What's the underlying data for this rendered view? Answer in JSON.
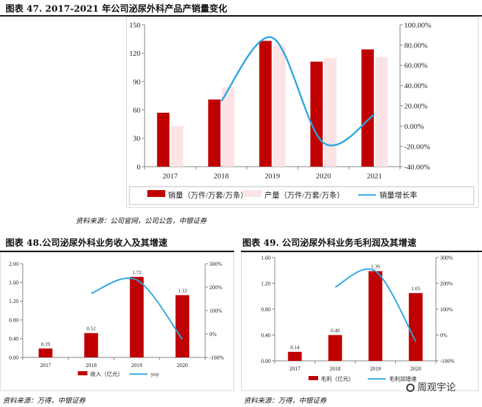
{
  "fig47": {
    "title": "图表 47. 2017-2021 年公司泌尿外科产品产销量变化",
    "source": "资料来源：公司官网，公司公告，中银证券"
  },
  "fig48": {
    "title": "图表 48.公司泌尿外科业务收入及其增速",
    "source": "资料来源：万得，中银证券"
  },
  "fig49": {
    "title": "图表 49. 公司泌尿外科业务毛利润及其增速",
    "source": "资料来源：万得，中银证券"
  },
  "watermark": "周观宇论",
  "colors": {
    "bar": "#c00000",
    "bar_light": "#fbe3e6",
    "line": "#2aa7e0",
    "axis": "#7f7f7f"
  },
  "chart_data": [
    {
      "type": "bar",
      "categories": [
        "2017",
        "2018",
        "2019",
        "2020",
        "2021"
      ],
      "series": [
        {
          "name": "销量（万件/万套/万条）",
          "kind": "bar",
          "axis": "left",
          "values": [
            57,
            71,
            133,
            111,
            124
          ]
        },
        {
          "name": "产量（万件/万套/万条）",
          "kind": "bar",
          "axis": "left",
          "values": [
            43,
            84,
            128,
            115,
            116
          ]
        },
        {
          "name": "销量增长率",
          "kind": "line",
          "axis": "right",
          "values": [
            null,
            24.6,
            87.3,
            -16.5,
            11.7
          ]
        }
      ],
      "yticks_left": [
        "0",
        "30",
        "60",
        "90",
        "120",
        "150"
      ],
      "yticks_right": [
        "-40.00%",
        "-20.00%",
        "0.00%",
        "20.00%",
        "40.00%",
        "60.00%",
        "80.00%",
        "100.00%"
      ],
      "ylim_left": [
        0,
        150
      ],
      "ylim_right": [
        -40,
        100
      ],
      "legend_position": "bottom",
      "grid": false
    },
    {
      "type": "bar",
      "categories": [
        "2017",
        "2018",
        "2019",
        "2020"
      ],
      "series": [
        {
          "name": "收入（亿元）",
          "kind": "bar",
          "axis": "left",
          "values": [
            0.19,
            0.52,
            1.72,
            1.33
          ],
          "labels": [
            "0.19",
            "0.52",
            "1.72",
            "1.33"
          ]
        },
        {
          "name": "yoy",
          "kind": "line",
          "axis": "right",
          "values": [
            null,
            173.7,
            230.8,
            -22.7
          ]
        }
      ],
      "yticks_left": [
        "0.00",
        "0.40",
        "0.80",
        "1.20",
        "1.60",
        "2.00"
      ],
      "yticks_right": [
        "-100%",
        "0%",
        "100%",
        "200%",
        "300%"
      ],
      "ylim_left": [
        0,
        2
      ],
      "ylim_right": [
        -100,
        300
      ],
      "legend_position": "bottom",
      "grid": false
    },
    {
      "type": "bar",
      "categories": [
        "2017",
        "2018",
        "2019",
        "2020"
      ],
      "series": [
        {
          "name": "毛利（亿元）",
          "kind": "bar",
          "axis": "left",
          "values": [
            0.14,
            0.4,
            1.39,
            1.05
          ],
          "labels": [
            "0.14",
            "0.40",
            "1.39",
            "1.05"
          ]
        },
        {
          "name": "毛利润增速",
          "kind": "line",
          "axis": "right",
          "values": [
            null,
            185.7,
            247.5,
            -24.5
          ]
        }
      ],
      "yticks_left": [
        "0.00",
        "0.40",
        "0.80",
        "1.20",
        "1.60"
      ],
      "yticks_right": [
        "-100%",
        "0%",
        "100%",
        "200%",
        "300%"
      ],
      "ylim_left": [
        0,
        1.6
      ],
      "ylim_right": [
        -100,
        300
      ],
      "legend_position": "bottom",
      "grid": false
    }
  ]
}
